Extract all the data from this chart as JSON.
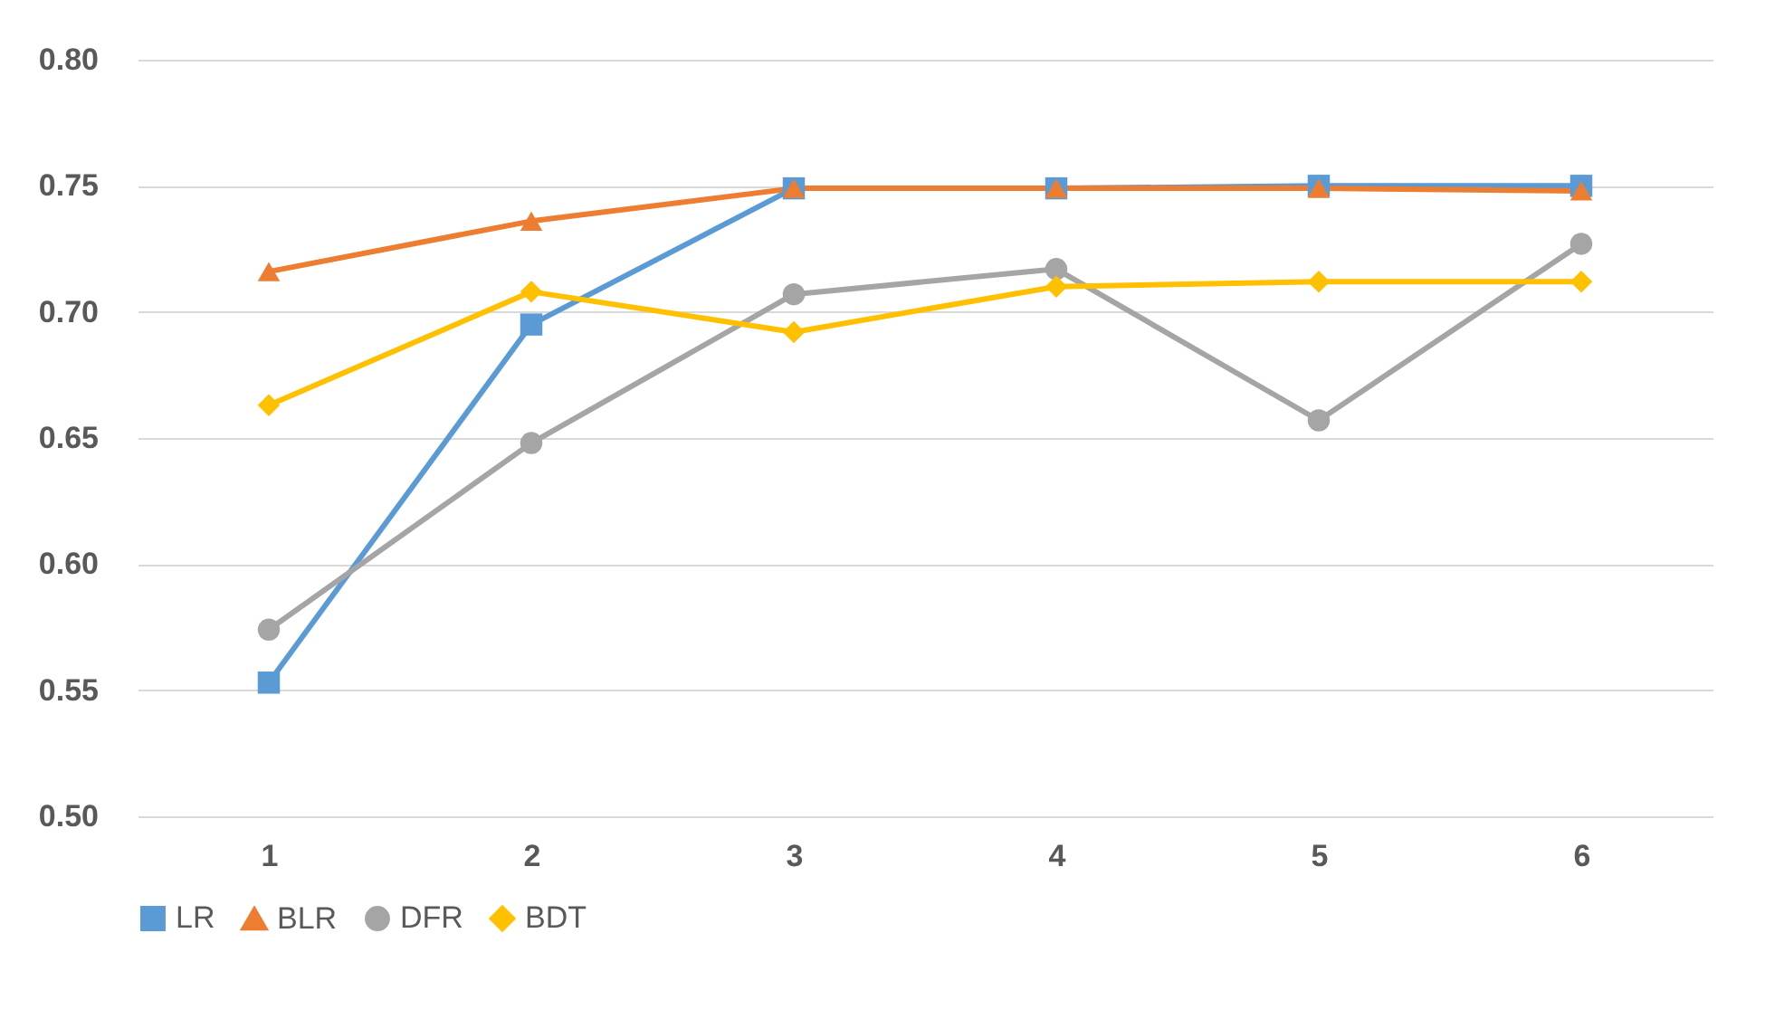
{
  "chart_data": {
    "type": "line",
    "categories": [
      "1",
      "2",
      "3",
      "4",
      "5",
      "6"
    ],
    "series": [
      {
        "name": "LR",
        "color": "#5b9bd5",
        "marker": "square",
        "values": [
          0.553,
          0.695,
          0.749,
          0.749,
          0.75,
          0.75
        ]
      },
      {
        "name": "BLR",
        "color": "#ed7d31",
        "marker": "triangle",
        "values": [
          0.716,
          0.736,
          0.749,
          0.749,
          0.749,
          0.748
        ]
      },
      {
        "name": "DFR",
        "color": "#a5a5a5",
        "marker": "circle",
        "values": [
          0.574,
          0.648,
          0.707,
          0.717,
          0.657,
          0.727
        ]
      },
      {
        "name": "BDT",
        "color": "#ffc000",
        "marker": "diamond",
        "values": [
          0.663,
          0.708,
          0.692,
          0.71,
          0.712,
          0.712
        ]
      }
    ],
    "ylim": [
      0.5,
      0.8
    ],
    "yticks": [
      {
        "value": 0.5,
        "label": "0.50"
      },
      {
        "value": 0.55,
        "label": "0.55"
      },
      {
        "value": 0.6,
        "label": "0.60"
      },
      {
        "value": 0.65,
        "label": "0.65"
      },
      {
        "value": 0.7,
        "label": "0.70"
      },
      {
        "value": 0.75,
        "label": "0.75"
      },
      {
        "value": 0.8,
        "label": "0.80"
      }
    ],
    "grid": "y",
    "legend": "bottom",
    "line_style": "solid"
  }
}
